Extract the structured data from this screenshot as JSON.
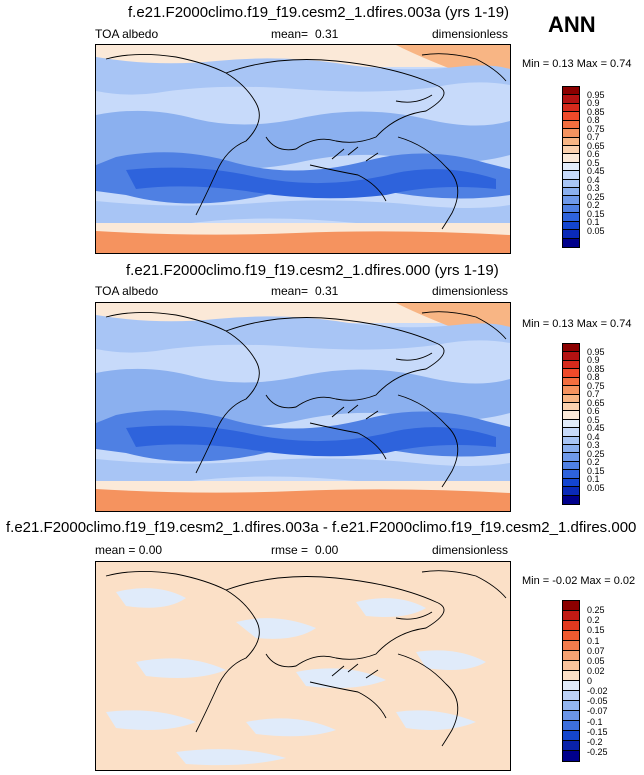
{
  "season": "ANN",
  "panels": [
    {
      "title": "f.e21.F2000climo.f19_f19.cesm2_1.dfires.003a (yrs 1-19)",
      "left": "TOA albedo",
      "center_label": "mean=",
      "center_value": "0.31",
      "right": "dimensionless",
      "minmax": "Min =  0.13 Max =  0.74",
      "kind": "albedo"
    },
    {
      "title": "f.e21.F2000climo.f19_f19.cesm2_1.dfires.000 (yrs 1-19)",
      "left": "TOA albedo",
      "center_label": "mean=",
      "center_value": "0.31",
      "right": "dimensionless",
      "minmax": "Min =  0.13 Max =  0.74",
      "kind": "albedo"
    },
    {
      "title": "f.e21.F2000climo.f19_f19.cesm2_1.dfires.003a - f.e21.F2000climo.f19_f19.cesm2_1.dfires.000",
      "left": "mean =   0.00",
      "center_label": "rmse =",
      "center_value": "0.00",
      "right": "dimensionless",
      "minmax": "Min =  -0.02 Max =  0.02",
      "kind": "diff"
    }
  ],
  "colorbars": {
    "albedo": {
      "labels": [
        "0.95",
        "0.9",
        "0.85",
        "0.8",
        "0.75",
        "0.7",
        "0.65",
        "0.6",
        "0.5",
        "0.45",
        "0.4",
        "0.3",
        "0.25",
        "0.2",
        "0.15",
        "0.1",
        "0.05"
      ],
      "colors": [
        "#8b0000",
        "#b31212",
        "#d62a1c",
        "#ef4a2a",
        "#f36e3f",
        "#f5935f",
        "#f8b584",
        "#fbd1ae",
        "#fbe9d8",
        "#e2ecfa",
        "#c7dafa",
        "#a8c5f5",
        "#8bb0ef",
        "#6e99ea",
        "#4f80e3",
        "#2e63dc",
        "#1345d0",
        "#0a2ab8",
        "#00008b"
      ]
    },
    "diff": {
      "labels": [
        "0.25",
        "0.2",
        "0.15",
        "0.1",
        "0.07",
        "0.05",
        "0.02",
        "0",
        "-0.02",
        "-0.05",
        "-0.07",
        "-0.1",
        "-0.15",
        "-0.2",
        "-0.25"
      ],
      "colors": [
        "#8b0000",
        "#c01a14",
        "#e0391f",
        "#ef5a30",
        "#f37c4d",
        "#f6a272",
        "#f9c39c",
        "#fbe0c7",
        "#e0ebfa",
        "#bcd2f7",
        "#93b6f0",
        "#6b95e7",
        "#3d6fdc",
        "#1546cc",
        "#0a22a8",
        "#00008b"
      ]
    }
  }
}
